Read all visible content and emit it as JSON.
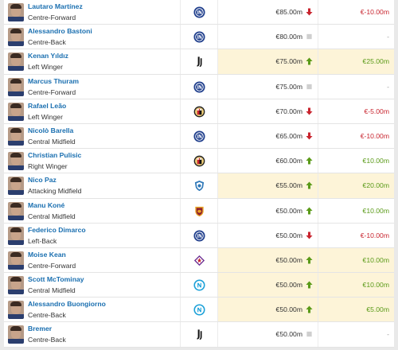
{
  "colors": {
    "name_link": "#1a6fb0",
    "down": "#c8242e",
    "up": "#5a9a18",
    "highlight": "#fdf4d8",
    "club_inter": "#1f3e8c",
    "club_juventus": "#111111",
    "club_milan": "#c8242e",
    "club_como": "#2f78b8",
    "club_roma": "#8e1f2f",
    "club_fiorentina": "#6a2c91",
    "club_napoli": "#1aa0d8"
  },
  "players": [
    {
      "name": "Lautaro Martínez",
      "position": "Centre-Forward",
      "club_icon": "inter-crest-icon",
      "market_value": "€85.00m",
      "trend": "down",
      "change": "€-10.00m",
      "highlight": false
    },
    {
      "name": "Alessandro Bastoni",
      "position": "Centre-Back",
      "club_icon": "inter-crest-icon",
      "market_value": "€80.00m",
      "trend": "none",
      "change": "-",
      "highlight": false
    },
    {
      "name": "Kenan Yıldız",
      "position": "Left Winger",
      "club_icon": "juventus-crest-icon",
      "market_value": "€75.00m",
      "trend": "up",
      "change": "€25.00m",
      "highlight": true
    },
    {
      "name": "Marcus Thuram",
      "position": "Centre-Forward",
      "club_icon": "inter-crest-icon",
      "market_value": "€75.00m",
      "trend": "none",
      "change": "-",
      "highlight": false
    },
    {
      "name": "Rafael Leão",
      "position": "Left Winger",
      "club_icon": "milan-crest-icon",
      "market_value": "€70.00m",
      "trend": "down",
      "change": "€-5.00m",
      "highlight": false
    },
    {
      "name": "Nicolò Barella",
      "position": "Central Midfield",
      "club_icon": "inter-crest-icon",
      "market_value": "€65.00m",
      "trend": "down",
      "change": "€-10.00m",
      "highlight": false
    },
    {
      "name": "Christian Pulisic",
      "position": "Right Winger",
      "club_icon": "milan-crest-icon",
      "market_value": "€60.00m",
      "trend": "up",
      "change": "€10.00m",
      "highlight": false
    },
    {
      "name": "Nico Paz",
      "position": "Attacking Midfield",
      "club_icon": "como-crest-icon",
      "market_value": "€55.00m",
      "trend": "up",
      "change": "€20.00m",
      "highlight": true
    },
    {
      "name": "Manu Koné",
      "position": "Central Midfield",
      "club_icon": "roma-crest-icon",
      "market_value": "€50.00m",
      "trend": "up",
      "change": "€10.00m",
      "highlight": false
    },
    {
      "name": "Federico Dimarco",
      "position": "Left-Back",
      "club_icon": "inter-crest-icon",
      "market_value": "€50.00m",
      "trend": "down",
      "change": "€-10.00m",
      "highlight": false
    },
    {
      "name": "Moise Kean",
      "position": "Centre-Forward",
      "club_icon": "fiorentina-crest-icon",
      "market_value": "€50.00m",
      "trend": "up",
      "change": "€10.00m",
      "highlight": true
    },
    {
      "name": "Scott McTominay",
      "position": "Central Midfield",
      "club_icon": "napoli-crest-icon",
      "market_value": "€50.00m",
      "trend": "up",
      "change": "€10.00m",
      "highlight": true
    },
    {
      "name": "Alessandro Buongiorno",
      "position": "Centre-Back",
      "club_icon": "napoli-crest-icon",
      "market_value": "€50.00m",
      "trend": "up",
      "change": "€5.00m",
      "highlight": true
    },
    {
      "name": "Bremer",
      "position": "Centre-Back",
      "club_icon": "juventus-crest-icon",
      "market_value": "€50.00m",
      "trend": "none",
      "change": "-",
      "highlight": false
    }
  ]
}
